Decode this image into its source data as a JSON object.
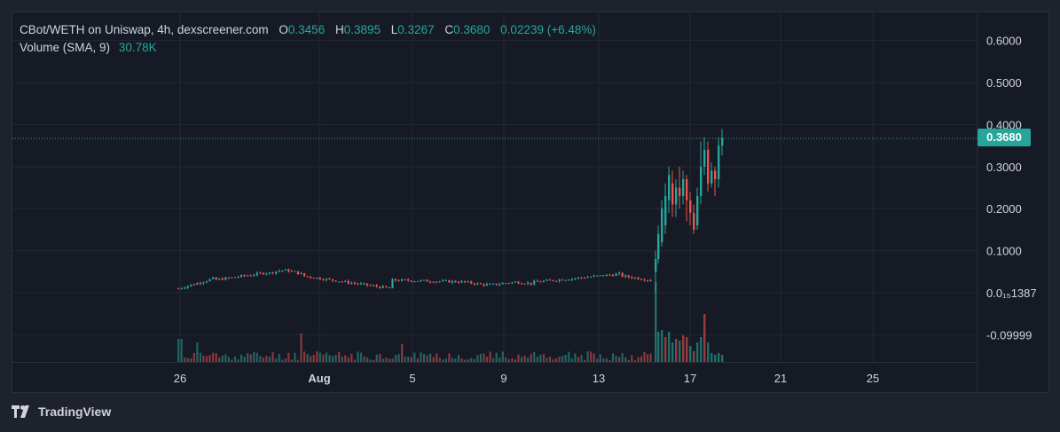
{
  "legend": {
    "symbol": "CBot/WETH on Uniswap, 4h, dexscreener.com",
    "o_key": "O",
    "o_val": "0.3456",
    "h_key": "H",
    "h_val": "0.3895",
    "l_key": "L",
    "l_val": "0.3267",
    "c_key": "C",
    "c_val": "0.3680",
    "change": "0.02239 (+6.48%)",
    "volume_label": "Volume (SMA, 9)",
    "volume_val": "30.78K"
  },
  "brand": {
    "name": "TradingView"
  },
  "colors": {
    "up": "#26a69a",
    "down": "#ef5350",
    "grid": "#242833",
    "text": "#d1d4dc"
  },
  "chart_data": {
    "type": "candlestick",
    "x_ticks": [
      "26",
      "Aug",
      "5",
      "9",
      "13",
      "17",
      "21",
      "25"
    ],
    "y_ticks": [
      "0.6000",
      "0.5000",
      "0.4000",
      "0.3000",
      "0.2000",
      "0.1000",
      "0.0₁₅1387",
      "-0.09999"
    ],
    "y_tick_values": [
      0.6,
      0.5,
      0.4,
      0.3,
      0.2,
      0.1,
      0.0,
      -0.09999
    ],
    "last_price": "0.3680",
    "last_price_value": 0.368,
    "pre_spike_range": [
      0.01,
      0.09
    ],
    "spike": {
      "x_tick": "15",
      "peak": 0.3895
    }
  }
}
